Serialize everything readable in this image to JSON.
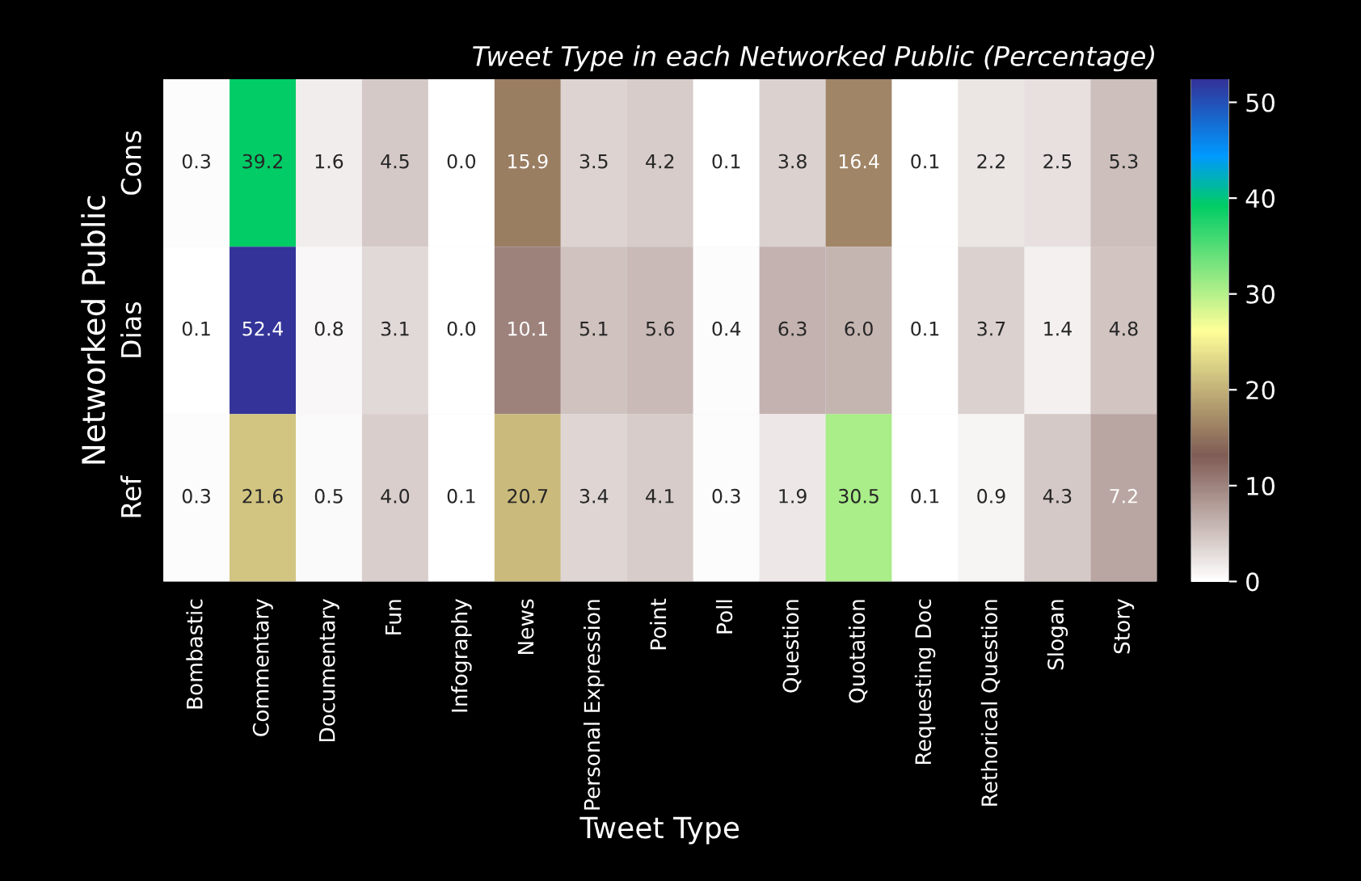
{
  "chart_data": {
    "type": "heatmap",
    "title": "Tweet Type in each Networked Public (Percentage)",
    "xlabel": "Tweet Type",
    "ylabel": "Networked Public",
    "categories": [
      "Bombastic",
      "Commentary",
      "Documentary",
      "Fun",
      "Infography",
      "News",
      "Personal Expression",
      "Point",
      "Poll",
      "Question",
      "Quotation",
      "Requesting Doc",
      "Rethorical Question",
      "Slogan",
      "Story"
    ],
    "y_categories": [
      "Cons",
      "Dias",
      "Ref"
    ],
    "cells": [
      [
        0.3,
        39.2,
        1.6,
        4.5,
        0.0,
        15.9,
        3.5,
        4.2,
        0.1,
        3.8,
        16.4,
        0.1,
        2.2,
        2.5,
        5.3
      ],
      [
        0.1,
        52.4,
        0.8,
        3.1,
        0.0,
        10.1,
        5.1,
        5.6,
        0.4,
        6.3,
        6.0,
        0.1,
        3.7,
        1.4,
        4.8
      ],
      [
        0.3,
        21.6,
        0.5,
        4.0,
        0.1,
        20.7,
        3.4,
        4.1,
        0.3,
        1.9,
        30.5,
        0.1,
        0.9,
        4.3,
        7.2
      ]
    ],
    "cell_labels": [
      [
        "0.3",
        "39.2",
        "1.6",
        "4.5",
        "0.0",
        "15.9",
        "3.5",
        "4.2",
        "0.1",
        "3.8",
        "16.4",
        "0.1",
        "2.2",
        "2.5",
        "5.3"
      ],
      [
        "0.1",
        "52.4",
        "0.8",
        "3.1",
        "0.0",
        "10.1",
        "5.1",
        "5.6",
        "0.4",
        "6.3",
        "6.0",
        "0.1",
        "3.7",
        "1.4",
        "4.8"
      ],
      [
        "0.3",
        "21.6",
        "0.5",
        "4.0",
        "0.1",
        "20.7",
        "3.4",
        "4.1",
        "0.3",
        "1.9",
        "30.5",
        "0.1",
        "0.9",
        "4.3",
        "7.2"
      ]
    ],
    "clim": [
      0,
      52.4
    ],
    "cticks": [
      0,
      10,
      20,
      30,
      40,
      50
    ],
    "data_labels": true
  }
}
